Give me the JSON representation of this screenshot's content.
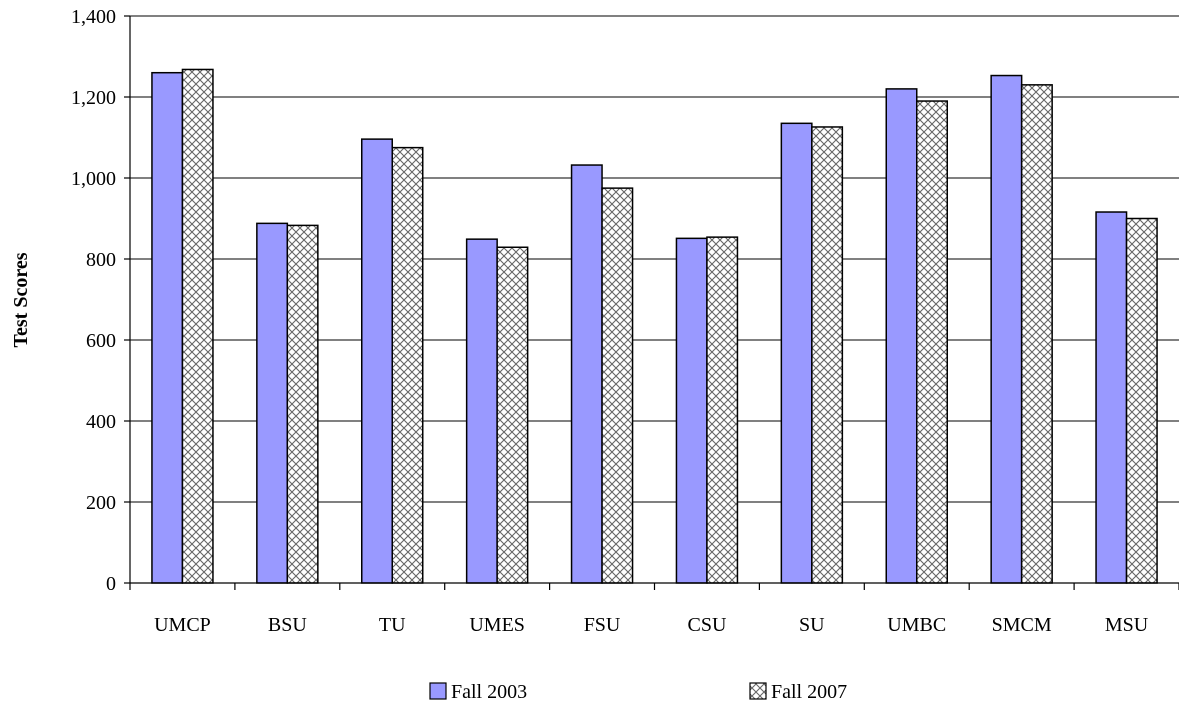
{
  "chart_data": {
    "type": "bar",
    "title": "",
    "xlabel": "",
    "ylabel": "Test Scores",
    "ylim": [
      0,
      1400
    ],
    "ytick_step": 200,
    "ytick_labels": [
      "0",
      "200",
      "400",
      "600",
      "800",
      "1,000",
      "1,200",
      "1,400"
    ],
    "grid": true,
    "legend_position": "bottom",
    "categories": [
      "UMCP",
      "BSU",
      "TU",
      "UMES",
      "FSU",
      "CSU",
      "SU",
      "UMBC",
      "SMCM",
      "MSU"
    ],
    "series": [
      {
        "name": "Fall 2003",
        "color": "#9999ff",
        "pattern": "solid",
        "values": [
          1260,
          888,
          1096,
          849,
          1032,
          851,
          1135,
          1220,
          1253,
          916
        ]
      },
      {
        "name": "Fall 2007",
        "color": "#ffffff",
        "pattern": "crosshatch",
        "values": [
          1268,
          883,
          1075,
          829,
          975,
          854,
          1126,
          1190,
          1230,
          900
        ]
      }
    ]
  }
}
